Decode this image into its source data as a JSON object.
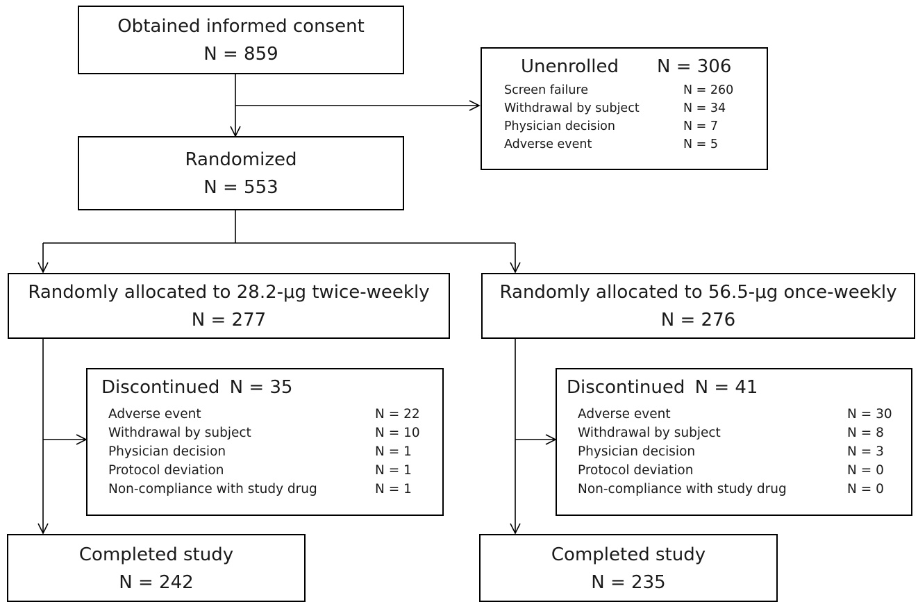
{
  "consent": {
    "title": "Obtained informed consent",
    "count": "N = 859"
  },
  "unenrolled": {
    "title": "Unenrolled",
    "count": "N = 306",
    "reasons": [
      {
        "label": "Screen failure",
        "count": "N = 260"
      },
      {
        "label": "Withdrawal by subject",
        "count": "N = 34"
      },
      {
        "label": "Physician decision",
        "count": "N = 7"
      },
      {
        "label": "Adverse event",
        "count": "N = 5"
      }
    ]
  },
  "randomized": {
    "title": "Randomized",
    "count": "N = 553"
  },
  "arm_a": {
    "title": "Randomly allocated to 28.2-μg twice-weekly",
    "count": "N = 277",
    "discontinued": {
      "title": "Discontinued",
      "count": "N = 35",
      "reasons": [
        {
          "label": "Adverse event",
          "count": "N = 22"
        },
        {
          "label": "Withdrawal by subject",
          "count": "N = 10"
        },
        {
          "label": "Physician decision",
          "count": "N = 1"
        },
        {
          "label": "Protocol deviation",
          "count": "N = 1"
        },
        {
          "label": "Non-compliance with study drug",
          "count": "N = 1"
        }
      ]
    },
    "completed": {
      "title": "Completed study",
      "count": "N = 242"
    }
  },
  "arm_b": {
    "title": "Randomly allocated to 56.5-μg once-weekly",
    "count": "N = 276",
    "discontinued": {
      "title": "Discontinued",
      "count": "N = 41",
      "reasons": [
        {
          "label": "Adverse event",
          "count": "N = 30"
        },
        {
          "label": "Withdrawal by subject",
          "count": "N = 8"
        },
        {
          "label": "Physician decision",
          "count": "N = 3"
        },
        {
          "label": "Protocol deviation",
          "count": "N = 0"
        },
        {
          "label": "Non-compliance with study drug",
          "count": "N = 0"
        }
      ]
    },
    "completed": {
      "title": "Completed study",
      "count": "N = 235"
    }
  }
}
